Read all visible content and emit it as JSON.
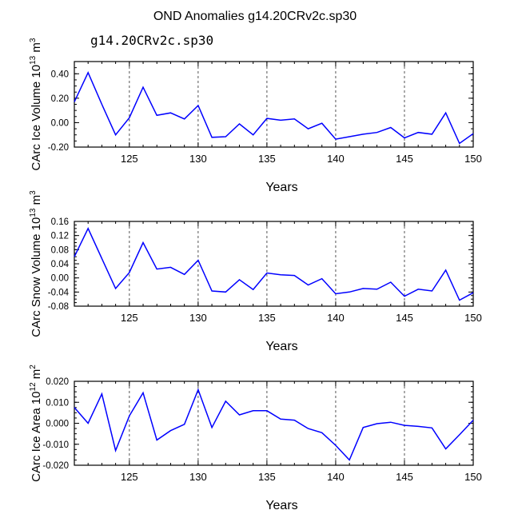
{
  "title": "OND Anomalies g14.20CRv2c.sp30",
  "subtitle": "g14.20CRv2c.sp30",
  "line_color": "#0000ff",
  "chart_data": [
    {
      "type": "line",
      "xlabel": "Years",
      "ylabel": "CArc Ice Volume 10",
      "ylabel_sup1": "13",
      "ylabel_mid": " m",
      "ylabel_sup2": "3",
      "xlim": [
        121,
        150
      ],
      "ylim": [
        -0.2,
        0.5
      ],
      "xticks": [
        125,
        130,
        135,
        140,
        145,
        150
      ],
      "xtick_labels": [
        "125",
        "130",
        "135",
        "140",
        "145",
        "150"
      ],
      "yticks": [
        -0.2,
        0.0,
        0.2,
        0.4
      ],
      "ytick_labels": [
        "-0.20",
        "0.00",
        "0.20",
        "0.40"
      ],
      "vlines": [
        125,
        130,
        135,
        140,
        145
      ],
      "x": [
        121,
        122,
        123,
        124,
        125,
        126,
        127,
        128,
        129,
        130,
        131,
        132,
        133,
        134,
        135,
        136,
        137,
        138,
        139,
        140,
        141,
        142,
        143,
        144,
        145,
        146,
        147,
        148,
        149,
        150
      ],
      "values": [
        0.17,
        0.41,
        0.15,
        -0.1,
        0.04,
        0.29,
        0.06,
        0.08,
        0.03,
        0.14,
        -0.12,
        -0.115,
        -0.01,
        -0.1,
        0.035,
        0.02,
        0.03,
        -0.05,
        -0.005,
        -0.135,
        -0.115,
        -0.095,
        -0.08,
        -0.04,
        -0.125,
        -0.08,
        -0.095,
        0.08,
        -0.17,
        -0.09
      ]
    },
    {
      "type": "line",
      "xlabel": "Years",
      "ylabel": "CArc Snow Volume 10",
      "ylabel_sup1": "13",
      "ylabel_mid": " m",
      "ylabel_sup2": "3",
      "xlim": [
        121,
        150
      ],
      "ylim": [
        -0.08,
        0.16
      ],
      "xticks": [
        125,
        130,
        135,
        140,
        145,
        150
      ],
      "xtick_labels": [
        "125",
        "130",
        "135",
        "140",
        "145",
        "150"
      ],
      "yticks": [
        -0.08,
        -0.04,
        0.0,
        0.04,
        0.08,
        0.12,
        0.16
      ],
      "ytick_labels": [
        "-0.08",
        "-0.04",
        "0.00",
        "0.04",
        "0.08",
        "0.12",
        "0.16"
      ],
      "vlines": [
        125,
        130,
        135,
        140,
        145
      ],
      "x": [
        121,
        122,
        123,
        124,
        125,
        126,
        127,
        128,
        129,
        130,
        131,
        132,
        133,
        134,
        135,
        136,
        137,
        138,
        139,
        140,
        141,
        142,
        143,
        144,
        145,
        146,
        147,
        148,
        149,
        150
      ],
      "values": [
        0.06,
        0.14,
        0.055,
        -0.03,
        0.015,
        0.1,
        0.025,
        0.03,
        0.01,
        0.05,
        -0.037,
        -0.04,
        -0.005,
        -0.033,
        0.014,
        0.009,
        0.007,
        -0.02,
        -0.002,
        -0.045,
        -0.04,
        -0.03,
        -0.032,
        -0.012,
        -0.052,
        -0.032,
        -0.037,
        0.022,
        -0.063,
        -0.042
      ]
    },
    {
      "type": "line",
      "xlabel": "Years",
      "ylabel": "CArc Ice Area 10",
      "ylabel_sup1": "12",
      "ylabel_mid": " m",
      "ylabel_sup2": "2",
      "xlim": [
        121,
        150
      ],
      "ylim": [
        -0.02,
        0.02
      ],
      "xticks": [
        125,
        130,
        135,
        140,
        145,
        150
      ],
      "xtick_labels": [
        "125",
        "130",
        "135",
        "140",
        "145",
        "150"
      ],
      "yticks": [
        -0.02,
        -0.01,
        0.0,
        0.01,
        0.02
      ],
      "ytick_labels": [
        "-0.020",
        "-0.010",
        "0.000",
        "0.010",
        "0.020"
      ],
      "vlines": [
        125,
        130,
        135,
        140,
        145
      ],
      "x": [
        121,
        122,
        123,
        124,
        125,
        126,
        127,
        128,
        129,
        130,
        131,
        132,
        133,
        134,
        135,
        136,
        137,
        138,
        139,
        140,
        141,
        142,
        143,
        144,
        145,
        146,
        147,
        148,
        149,
        150
      ],
      "values": [
        0.0075,
        0.0,
        0.014,
        -0.013,
        0.0035,
        0.0145,
        -0.008,
        -0.0035,
        -0.0005,
        0.016,
        -0.002,
        0.0105,
        0.004,
        0.006,
        0.006,
        0.002,
        0.0015,
        -0.0025,
        -0.0045,
        -0.0105,
        -0.0175,
        -0.002,
        -0.0002,
        0.0005,
        -0.001,
        -0.0015,
        -0.0022,
        -0.0122,
        -0.0055,
        0.0015
      ]
    }
  ]
}
